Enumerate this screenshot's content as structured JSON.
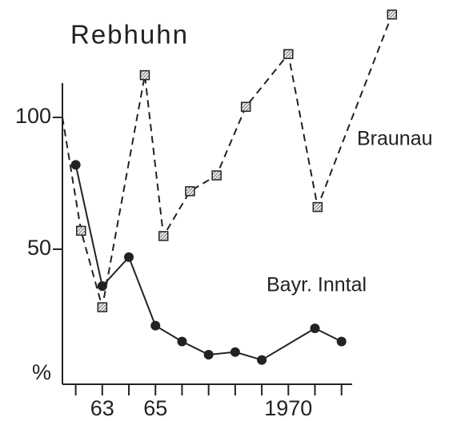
{
  "chart_data": {
    "type": "line",
    "title": "Rebhuhn",
    "ylabel": "%",
    "xlim": [
      1961.5,
      1972.4
    ],
    "ylim": [
      0,
      113
    ],
    "yticks": [
      50,
      100
    ],
    "xticks": [
      {
        "value": 1963,
        "label": "63"
      },
      {
        "value": 1965,
        "label": "65"
      },
      1970
    ],
    "xminorticks": [
      1962,
      1964,
      1966,
      1967,
      1968,
      1969,
      1971,
      1972
    ],
    "series": [
      {
        "name": "Braunau",
        "color": "#222222",
        "style": "dashed",
        "marker": "square",
        "x": [
          1961.5,
          1962.2,
          1963,
          1964.6,
          1965.3,
          1966.3,
          1967.3,
          1968.4,
          1970,
          1971.1,
          1973.9
        ],
        "values": [
          100,
          57,
          28,
          116,
          55,
          72,
          78,
          104,
          124,
          66,
          139
        ]
      },
      {
        "name": "Bayr. Inntal",
        "color": "#222222",
        "style": "solid",
        "marker": "circle",
        "x": [
          1962,
          1963,
          1964,
          1965,
          1966,
          1967,
          1968,
          1969,
          1971,
          1972
        ],
        "values": [
          82,
          36,
          47,
          21,
          15,
          10,
          11,
          8,
          20,
          15
        ]
      }
    ]
  }
}
